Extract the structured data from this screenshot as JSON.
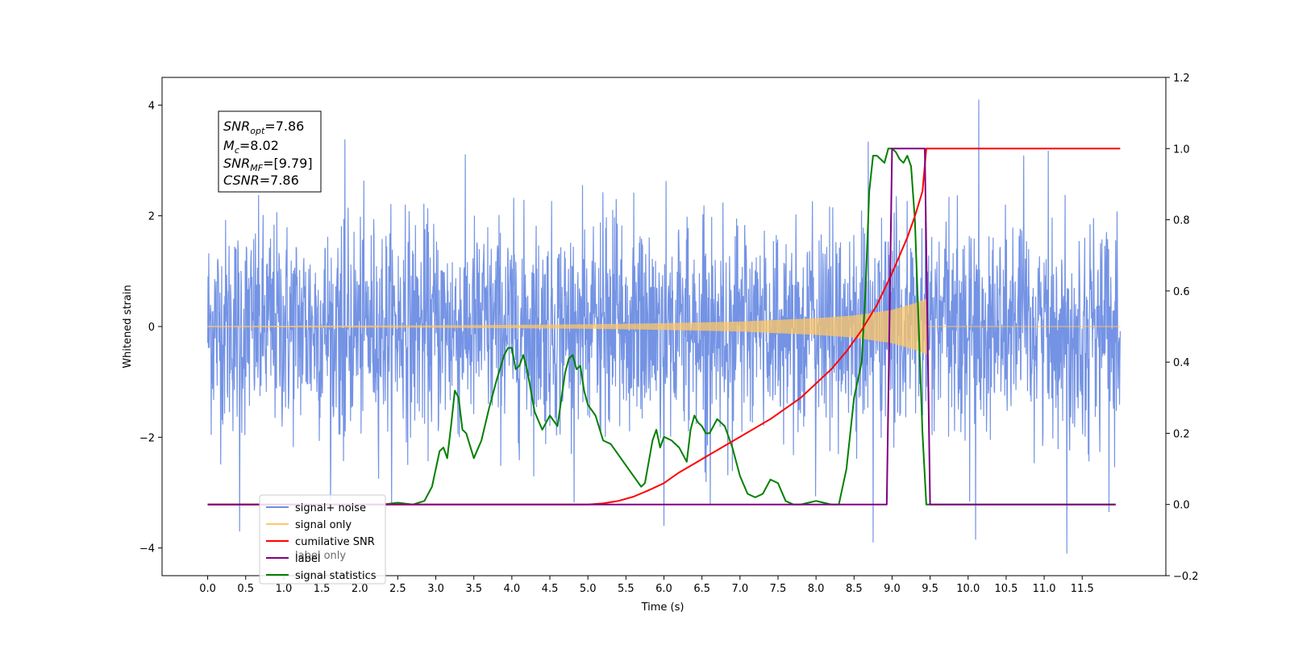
{
  "chart_data": {
    "type": "line",
    "xlabel": "Time (s)",
    "ylabel": "Whitened strain",
    "xlim": [
      -0.6,
      12.6
    ],
    "ylim_left": [
      -4.5,
      4.5
    ],
    "ylim_right": [
      -0.2,
      1.2
    ],
    "x_ticks": [
      "0.0",
      "0.5",
      "1.0",
      "1.5",
      "2.0",
      "2.5",
      "3.0",
      "3.5",
      "4.0",
      "4.5",
      "5.0",
      "5.5",
      "6.0",
      "6.5",
      "7.0",
      "7.5",
      "8.0",
      "8.5",
      "9.0",
      "9.5",
      "10.0",
      "10.5",
      "11.0",
      "11.5"
    ],
    "y_ticks_left": [
      "4",
      "2",
      "0",
      "−2",
      "−4"
    ],
    "y_ticks_right": [
      "1.2",
      "1.0",
      "0.8",
      "0.6",
      "0.4",
      "0.2",
      "0.0",
      "−0.2"
    ],
    "annotation": {
      "lines": [
        {
          "label": "SNR",
          "sub": "opt",
          "value": "=7.86"
        },
        {
          "label": "M",
          "sub": "c",
          "value": "=8.02"
        },
        {
          "label": "SNR",
          "sub": "MF",
          "value": "=[9.79]"
        },
        {
          "label": "CSNR",
          "sub": "",
          "value": "=7.86"
        }
      ]
    },
    "legend": {
      "position": "lower-left",
      "entries": [
        {
          "name": "signal+ noise",
          "color": "#6d8de3"
        },
        {
          "name": "signal only",
          "color": "#ffc766"
        },
        {
          "name": "cumilative SNR",
          "color": "#ff0000"
        },
        {
          "name": "label",
          "color": "#800080"
        },
        {
          "name": "signal statistics",
          "color": "#008000"
        }
      ],
      "hidden_text": [
        "label only"
      ]
    },
    "series": [
      {
        "name": "signal+ noise",
        "axis": "left",
        "color": "#6d8de3",
        "x_range": [
          0.0,
          12.0
        ],
        "sigma": 1.0,
        "extreme_spikes": [
          [
            0.42,
            -3.7
          ],
          [
            2.6,
            2.2
          ],
          [
            6.0,
            -3.6
          ],
          [
            8.75,
            -3.9
          ],
          [
            10.14,
            4.1
          ],
          [
            10.1,
            -3.85
          ],
          [
            11.3,
            -4.1
          ],
          [
            11.85,
            -3.35
          ]
        ]
      },
      {
        "name": "signal only",
        "axis": "left",
        "color": "#ffc766",
        "envelope": [
          [
            0.0,
            0.01
          ],
          [
            3.0,
            0.02
          ],
          [
            5.0,
            0.04
          ],
          [
            6.0,
            0.06
          ],
          [
            7.0,
            0.09
          ],
          [
            8.0,
            0.15
          ],
          [
            8.5,
            0.2
          ],
          [
            9.0,
            0.3
          ],
          [
            9.3,
            0.42
          ],
          [
            9.45,
            0.5
          ],
          [
            9.46,
            0.0
          ],
          [
            12.0,
            0.0
          ]
        ]
      },
      {
        "name": "cumilative SNR",
        "axis": "right",
        "color": "#ff0000",
        "x": [
          0.0,
          5.0,
          5.2,
          5.4,
          5.6,
          5.8,
          6.0,
          6.2,
          6.4,
          6.6,
          6.8,
          7.0,
          7.2,
          7.4,
          7.6,
          7.8,
          8.0,
          8.2,
          8.4,
          8.6,
          8.8,
          9.0,
          9.1,
          9.2,
          9.3,
          9.4,
          9.45,
          12.0
        ],
        "values": [
          0.0,
          0.0,
          0.003,
          0.01,
          0.022,
          0.04,
          0.06,
          0.09,
          0.115,
          0.14,
          0.165,
          0.19,
          0.215,
          0.24,
          0.27,
          0.3,
          0.34,
          0.38,
          0.43,
          0.49,
          0.56,
          0.65,
          0.7,
          0.75,
          0.81,
          0.88,
          1.0,
          1.0
        ]
      },
      {
        "name": "label",
        "axis": "right",
        "color": "#800080",
        "x": [
          0.0,
          8.93,
          9.0,
          9.43,
          9.5,
          11.94
        ],
        "values": [
          0.0,
          0.0,
          1.0,
          1.0,
          0.0,
          0.0
        ]
      },
      {
        "name": "signal statistics",
        "axis": "right",
        "color": "#008000",
        "x": [
          0.0,
          2.3,
          2.5,
          2.7,
          2.85,
          2.95,
          3.05,
          3.1,
          3.15,
          3.2,
          3.25,
          3.3,
          3.35,
          3.4,
          3.5,
          3.6,
          3.7,
          3.8,
          3.9,
          3.95,
          4.0,
          4.05,
          4.1,
          4.15,
          4.2,
          4.3,
          4.4,
          4.5,
          4.6,
          4.7,
          4.75,
          4.8,
          4.85,
          4.9,
          4.95,
          5.0,
          5.1,
          5.2,
          5.3,
          5.4,
          5.5,
          5.6,
          5.7,
          5.75,
          5.8,
          5.85,
          5.9,
          5.95,
          6.0,
          6.1,
          6.2,
          6.25,
          6.3,
          6.35,
          6.4,
          6.45,
          6.5,
          6.55,
          6.6,
          6.7,
          6.8,
          6.9,
          7.0,
          7.1,
          7.2,
          7.3,
          7.4,
          7.5,
          7.6,
          7.7,
          7.8,
          7.9,
          8.0,
          8.1,
          8.2,
          8.3,
          8.4,
          8.5,
          8.6,
          8.65,
          8.7,
          8.75,
          8.8,
          8.85,
          8.9,
          8.95,
          9.0,
          9.05,
          9.1,
          9.15,
          9.2,
          9.25,
          9.3,
          9.35,
          9.4,
          9.45,
          9.5,
          11.94
        ],
        "values": [
          0.0,
          0.0,
          0.005,
          0.0,
          0.01,
          0.05,
          0.15,
          0.16,
          0.13,
          0.22,
          0.32,
          0.3,
          0.21,
          0.2,
          0.13,
          0.18,
          0.27,
          0.35,
          0.42,
          0.44,
          0.44,
          0.38,
          0.39,
          0.42,
          0.38,
          0.26,
          0.21,
          0.25,
          0.22,
          0.37,
          0.41,
          0.42,
          0.38,
          0.39,
          0.32,
          0.28,
          0.25,
          0.18,
          0.17,
          0.14,
          0.11,
          0.08,
          0.05,
          0.06,
          0.12,
          0.18,
          0.21,
          0.16,
          0.19,
          0.18,
          0.16,
          0.14,
          0.12,
          0.21,
          0.25,
          0.23,
          0.22,
          0.2,
          0.2,
          0.24,
          0.22,
          0.16,
          0.08,
          0.03,
          0.02,
          0.03,
          0.07,
          0.06,
          0.01,
          0.0,
          0.0,
          0.005,
          0.01,
          0.005,
          0.0,
          0.0,
          0.1,
          0.3,
          0.4,
          0.6,
          0.88,
          0.98,
          0.98,
          0.97,
          0.96,
          1.0,
          1.0,
          0.99,
          0.97,
          0.96,
          0.98,
          0.95,
          0.8,
          0.5,
          0.2,
          0.0,
          0.0,
          0.0
        ]
      }
    ]
  }
}
